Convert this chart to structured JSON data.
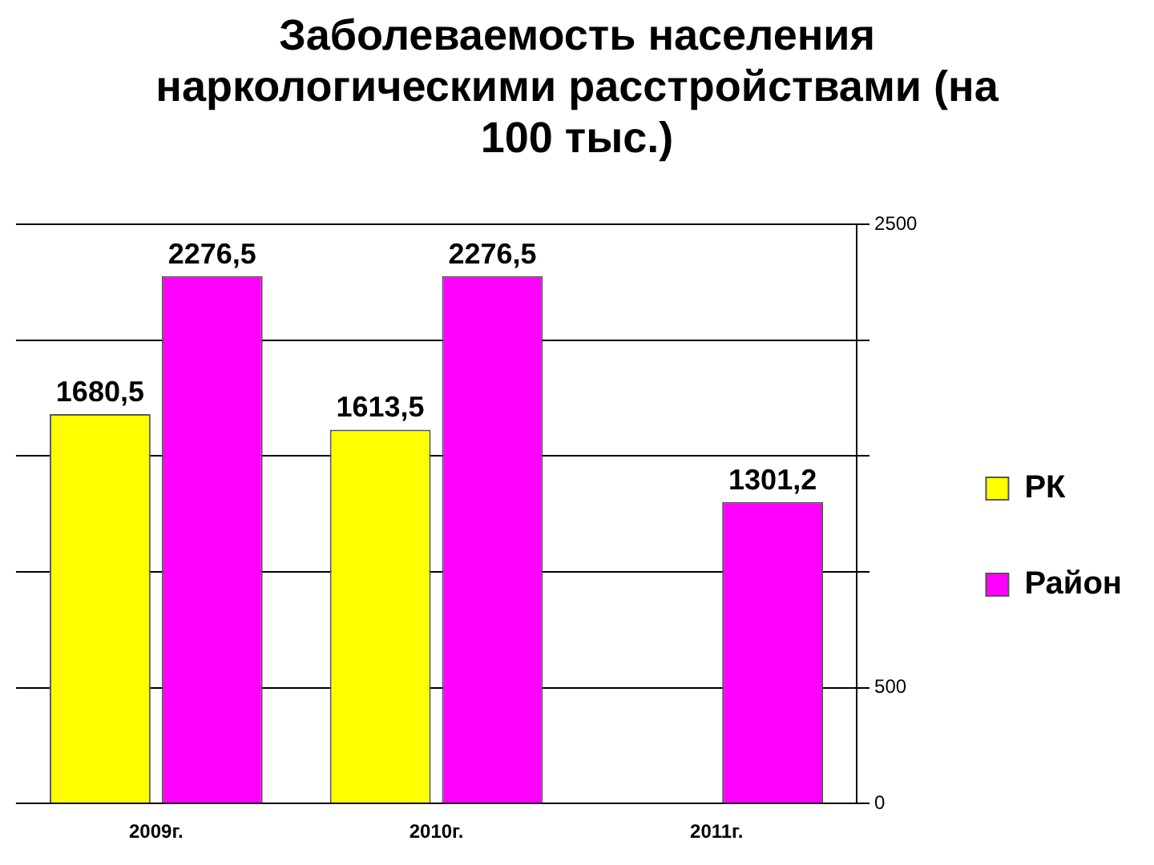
{
  "chart_data": {
    "type": "bar",
    "title": "Заболеваемость населения наркологическими расстройствами (на 100 тыс.)",
    "categories": [
      "2009г.",
      "2010г.",
      "2011г."
    ],
    "series": [
      {
        "name": "РК",
        "color": "#ffff00",
        "values": [
          1680.5,
          1613.5,
          null
        ],
        "value_labels": [
          "1680,5",
          "1613,5",
          null
        ]
      },
      {
        "name": "Район",
        "color": "#ff00ff",
        "values": [
          2276.5,
          2276.5,
          1301.2
        ],
        "value_labels": [
          "2276,5",
          "2276,5",
          "1301,2"
        ]
      }
    ],
    "ylim": [
      0,
      2500
    ],
    "yticks": [
      0,
      {
        "value": 500,
        "label": "500"
      },
      {
        "value": 1000,
        "label": null
      },
      {
        "value": 1500,
        "label": null
      },
      {
        "value": 2000,
        "label": null
      },
      2500
    ],
    "grid": "y",
    "legend": "right"
  }
}
